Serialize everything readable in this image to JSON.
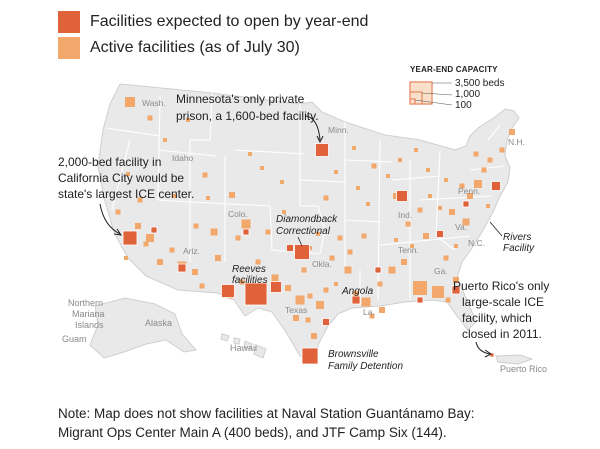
{
  "legend": {
    "opening": {
      "label": "Facilities expected to open by year-end",
      "color": "#e0623a"
    },
    "active": {
      "label": "Active facilities (as of July 30)",
      "color": "#f2a76b"
    }
  },
  "capacity_legend": {
    "title": "YEAR-END CAPACITY",
    "labels": [
      "3,500 beds",
      "1,000",
      "100"
    ]
  },
  "annotations": {
    "minnesota": [
      "Minnesota's only private",
      "prison, a 1,600-bed facility."
    ],
    "california": [
      "2,000-bed facility in",
      "California City would be",
      "state's largest ICE center."
    ],
    "puerto_rico": [
      "Puerto Rico's only",
      "large-scale ICE",
      "facility, which",
      "closed in 2011."
    ]
  },
  "facility_names": {
    "diamondback": [
      "Diamondback",
      "Correctional"
    ],
    "reeves": [
      "Reeves",
      "facilities"
    ],
    "angola": [
      "Angola"
    ],
    "rivers": [
      "Rivers",
      "Facility"
    ],
    "brownsville": [
      "Brownsville",
      "Family Detention"
    ]
  },
  "region_labels": {
    "wash": "Wash.",
    "idaho": "Idaho",
    "minn": "Minn.",
    "colo": "Colo.",
    "ariz": "Ariz.",
    "okla": "Okla.",
    "texas": "Texas",
    "la": "La.",
    "tenn": "Tenn.",
    "ga": "Ga.",
    "ind": "Ind.",
    "pa": "Penn.",
    "va": "Va.",
    "nc": "N.C.",
    "nh": "N.H."
  },
  "outside_labels": {
    "northern_mariana": [
      "Northern",
      "Mariana",
      "Islands"
    ],
    "guam": "Guam",
    "alaska": "Alaska",
    "hawaii": "Hawaii",
    "puerto_rico": "Puerto Rico"
  },
  "note": [
    "Note: Map does not show facilities at Naval Station Guantánamo Bay:",
    "Migrant Ops Center Main A (400 beds), and JTF Camp Six (144)."
  ],
  "facilities": [
    {
      "name": "California City",
      "status": "opening",
      "beds": 2000
    },
    {
      "name": "Minnesota private prison",
      "status": "opening",
      "beds": 1600
    },
    {
      "name": "Diamondback Correctional",
      "status": "opening",
      "beds": 2100
    },
    {
      "name": "Reeves facilities",
      "status": "opening",
      "beds": 3500
    },
    {
      "name": "Angola",
      "status": "opening",
      "beds": 400
    },
    {
      "name": "Rivers Facility",
      "status": "opening",
      "beds": 1000
    },
    {
      "name": "Brownsville Family Detention",
      "status": "opening",
      "beds": 1500
    },
    {
      "name": "Puerto Rico",
      "status": "opening",
      "beds": 150
    }
  ]
}
